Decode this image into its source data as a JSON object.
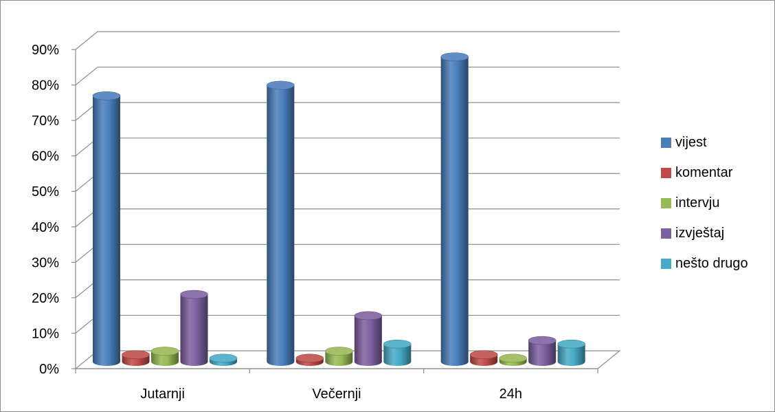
{
  "colors": {
    "vijest": "#4a7ebb",
    "komentar": "#be4b48",
    "intervju": "#98b954",
    "izvjestaj": "#7d60a0",
    "nesto_drugo": "#46aac5"
  },
  "chart_data": {
    "type": "bar",
    "style": "3d-cylinder",
    "categories": [
      "Jutarnji",
      "Večernji",
      "24h"
    ],
    "series": [
      {
        "name": "vijest",
        "color": "#4a7ebb",
        "values": [
          75,
          78,
          86
        ]
      },
      {
        "name": "komentar",
        "color": "#be4b48",
        "values": [
          2,
          1,
          2
        ]
      },
      {
        "name": "intervju",
        "color": "#98b954",
        "values": [
          3,
          3,
          1
        ]
      },
      {
        "name": "izvještaj",
        "color": "#7d60a0",
        "values": [
          19,
          13,
          6
        ]
      },
      {
        "name": "nešto drugo",
        "color": "#46aac5",
        "values": [
          1,
          5,
          5
        ]
      }
    ],
    "y_ticks": [
      "0%",
      "10%",
      "20%",
      "30%",
      "40%",
      "50%",
      "60%",
      "70%",
      "80%",
      "90%"
    ],
    "ylim": [
      0,
      90
    ],
    "grid": true,
    "legend_position": "right"
  }
}
